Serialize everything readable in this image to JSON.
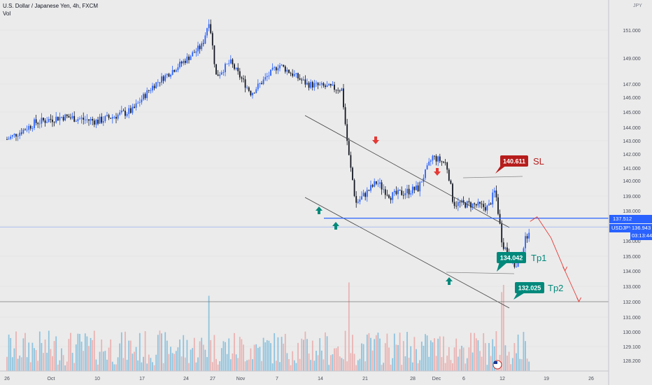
{
  "header": {
    "title": "U.S. Dollar / Japanese Yen, 4h, FXCM",
    "vol": "Vol"
  },
  "currency": "JPY",
  "price_badge": {
    "level_label": "137.512",
    "symbol": "USDJPY",
    "last": "136.943",
    "countdown": "03:13:44"
  },
  "colors": {
    "background": "#ebebeb",
    "up_candle": "#2962ff",
    "down_candle": "#131722",
    "sl_red": "#b71c1c",
    "tp_teal": "#00897b",
    "line_blue": "#2962ff",
    "channel": "#444444",
    "volume": "#6fb6d8"
  },
  "annotations": {
    "sl": {
      "value": "140.611",
      "label": "SL"
    },
    "tp1": {
      "value": "134.042",
      "label": "Tp1"
    },
    "tp2": {
      "value": "132.025",
      "label": "Tp2"
    }
  },
  "chart_data": {
    "type": "candlestick",
    "title": "U.S. Dollar / Japanese Yen, 4h, FXCM",
    "y_ticks": [
      "151.000",
      "149.000",
      "147.000",
      "146.000",
      "145.000",
      "144.000",
      "143.000",
      "142.000",
      "141.000",
      "140.000",
      "139.000",
      "138.000",
      "137.000",
      "136.000",
      "135.000",
      "134.000",
      "133.000",
      "132.000",
      "131.000",
      "130.000",
      "129.100",
      "128.200"
    ],
    "x_ticks": [
      "26",
      "Oct",
      "10",
      "17",
      "24",
      "27",
      "Nov",
      "7",
      "14",
      "21",
      "28",
      "Dec",
      "6",
      "12",
      "19",
      "26"
    ],
    "ylim": [
      127.6,
      152.3
    ],
    "close_path": [
      {
        "x": "Sep 22",
        "y": 143.1
      },
      {
        "x": "Sep 26",
        "y": 144.3
      },
      {
        "x": "Sep 30",
        "y": 144.7
      },
      {
        "x": "Oct 5",
        "y": 144.4
      },
      {
        "x": "Oct 10",
        "y": 145.1
      },
      {
        "x": "Oct 13",
        "y": 146.9
      },
      {
        "x": "Oct 17",
        "y": 148.6
      },
      {
        "x": "Oct 20",
        "y": 149.9
      },
      {
        "x": "Oct 21",
        "y": 151.8
      },
      {
        "x": "Oct 22",
        "y": 147.6
      },
      {
        "x": "Oct 24",
        "y": 148.7
      },
      {
        "x": "Oct 27",
        "y": 146.3
      },
      {
        "x": "Oct 31",
        "y": 148.5
      },
      {
        "x": "Nov 4",
        "y": 147.0
      },
      {
        "x": "Nov 9",
        "y": 146.6
      },
      {
        "x": "Nov 10",
        "y": 141.9
      },
      {
        "x": "Nov 11",
        "y": 138.5
      },
      {
        "x": "Nov 14",
        "y": 139.9
      },
      {
        "x": "Nov 16",
        "y": 139.0
      },
      {
        "x": "Nov 20",
        "y": 139.5
      },
      {
        "x": "Nov 22",
        "y": 141.8
      },
      {
        "x": "Nov 24",
        "y": 141.3
      },
      {
        "x": "Nov 25",
        "y": 138.5
      },
      {
        "x": "Nov 28",
        "y": 138.4
      },
      {
        "x": "Nov 30",
        "y": 138.2
      },
      {
        "x": "Dec 1",
        "y": 139.4
      },
      {
        "x": "Dec 2",
        "y": 135.9
      },
      {
        "x": "Dec 4",
        "y": 134.2
      },
      {
        "x": "Dec 5",
        "y": 135.6
      },
      {
        "x": "Dec 6",
        "y": 137.0
      }
    ],
    "projection": [
      {
        "x": "Dec 6",
        "y": 137.3
      },
      {
        "x": "Dec 7",
        "y": 137.6
      },
      {
        "x": "Dec 9",
        "y": 136.2
      },
      {
        "x": "Dec 11",
        "y": 134.0
      },
      {
        "x": "Dec 13",
        "y": 132.0
      }
    ],
    "horizontal_levels": [
      137.512,
      132.0,
      140.611,
      134.042
    ]
  }
}
